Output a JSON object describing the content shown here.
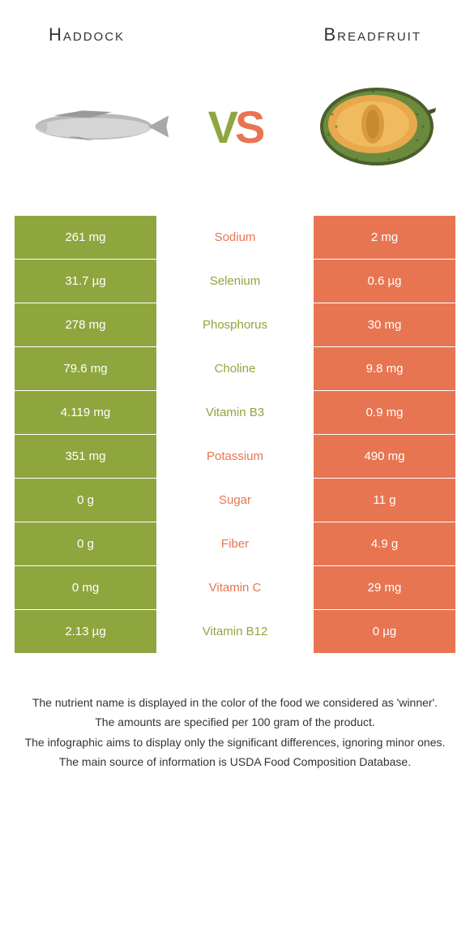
{
  "colors": {
    "left_bg": "#8fa63f",
    "right_bg": "#e87552",
    "left_text": "#8fa63f",
    "right_text": "#e87552",
    "white": "#ffffff",
    "body_text": "#333333"
  },
  "header": {
    "left_title": "Haddock",
    "right_title": "Breadfruit"
  },
  "vs": {
    "v": "V",
    "s": "S"
  },
  "rows": [
    {
      "left": "261 mg",
      "label": "Sodium",
      "right": "2 mg",
      "winner": "right"
    },
    {
      "left": "31.7 µg",
      "label": "Selenium",
      "right": "0.6 µg",
      "winner": "left"
    },
    {
      "left": "278 mg",
      "label": "Phosphorus",
      "right": "30 mg",
      "winner": "left"
    },
    {
      "left": "79.6 mg",
      "label": "Choline",
      "right": "9.8 mg",
      "winner": "left"
    },
    {
      "left": "4.119 mg",
      "label": "Vitamin B3",
      "right": "0.9 mg",
      "winner": "left"
    },
    {
      "left": "351 mg",
      "label": "Potassium",
      "right": "490 mg",
      "winner": "right"
    },
    {
      "left": "0 g",
      "label": "Sugar",
      "right": "11 g",
      "winner": "right"
    },
    {
      "left": "0 g",
      "label": "Fiber",
      "right": "4.9 g",
      "winner": "right"
    },
    {
      "left": "0 mg",
      "label": "Vitamin C",
      "right": "29 mg",
      "winner": "right"
    },
    {
      "left": "2.13 µg",
      "label": "Vitamin B12",
      "right": "0 µg",
      "winner": "left"
    }
  ],
  "footer": {
    "line1": "The nutrient name is displayed in the color of the food we considered as 'winner'.",
    "line2": "The amounts are specified per 100 gram of the product.",
    "line3": "The infographic aims to display only the significant differences, ignoring minor ones.",
    "line4": "The main source of information is USDA Food Composition Database."
  }
}
